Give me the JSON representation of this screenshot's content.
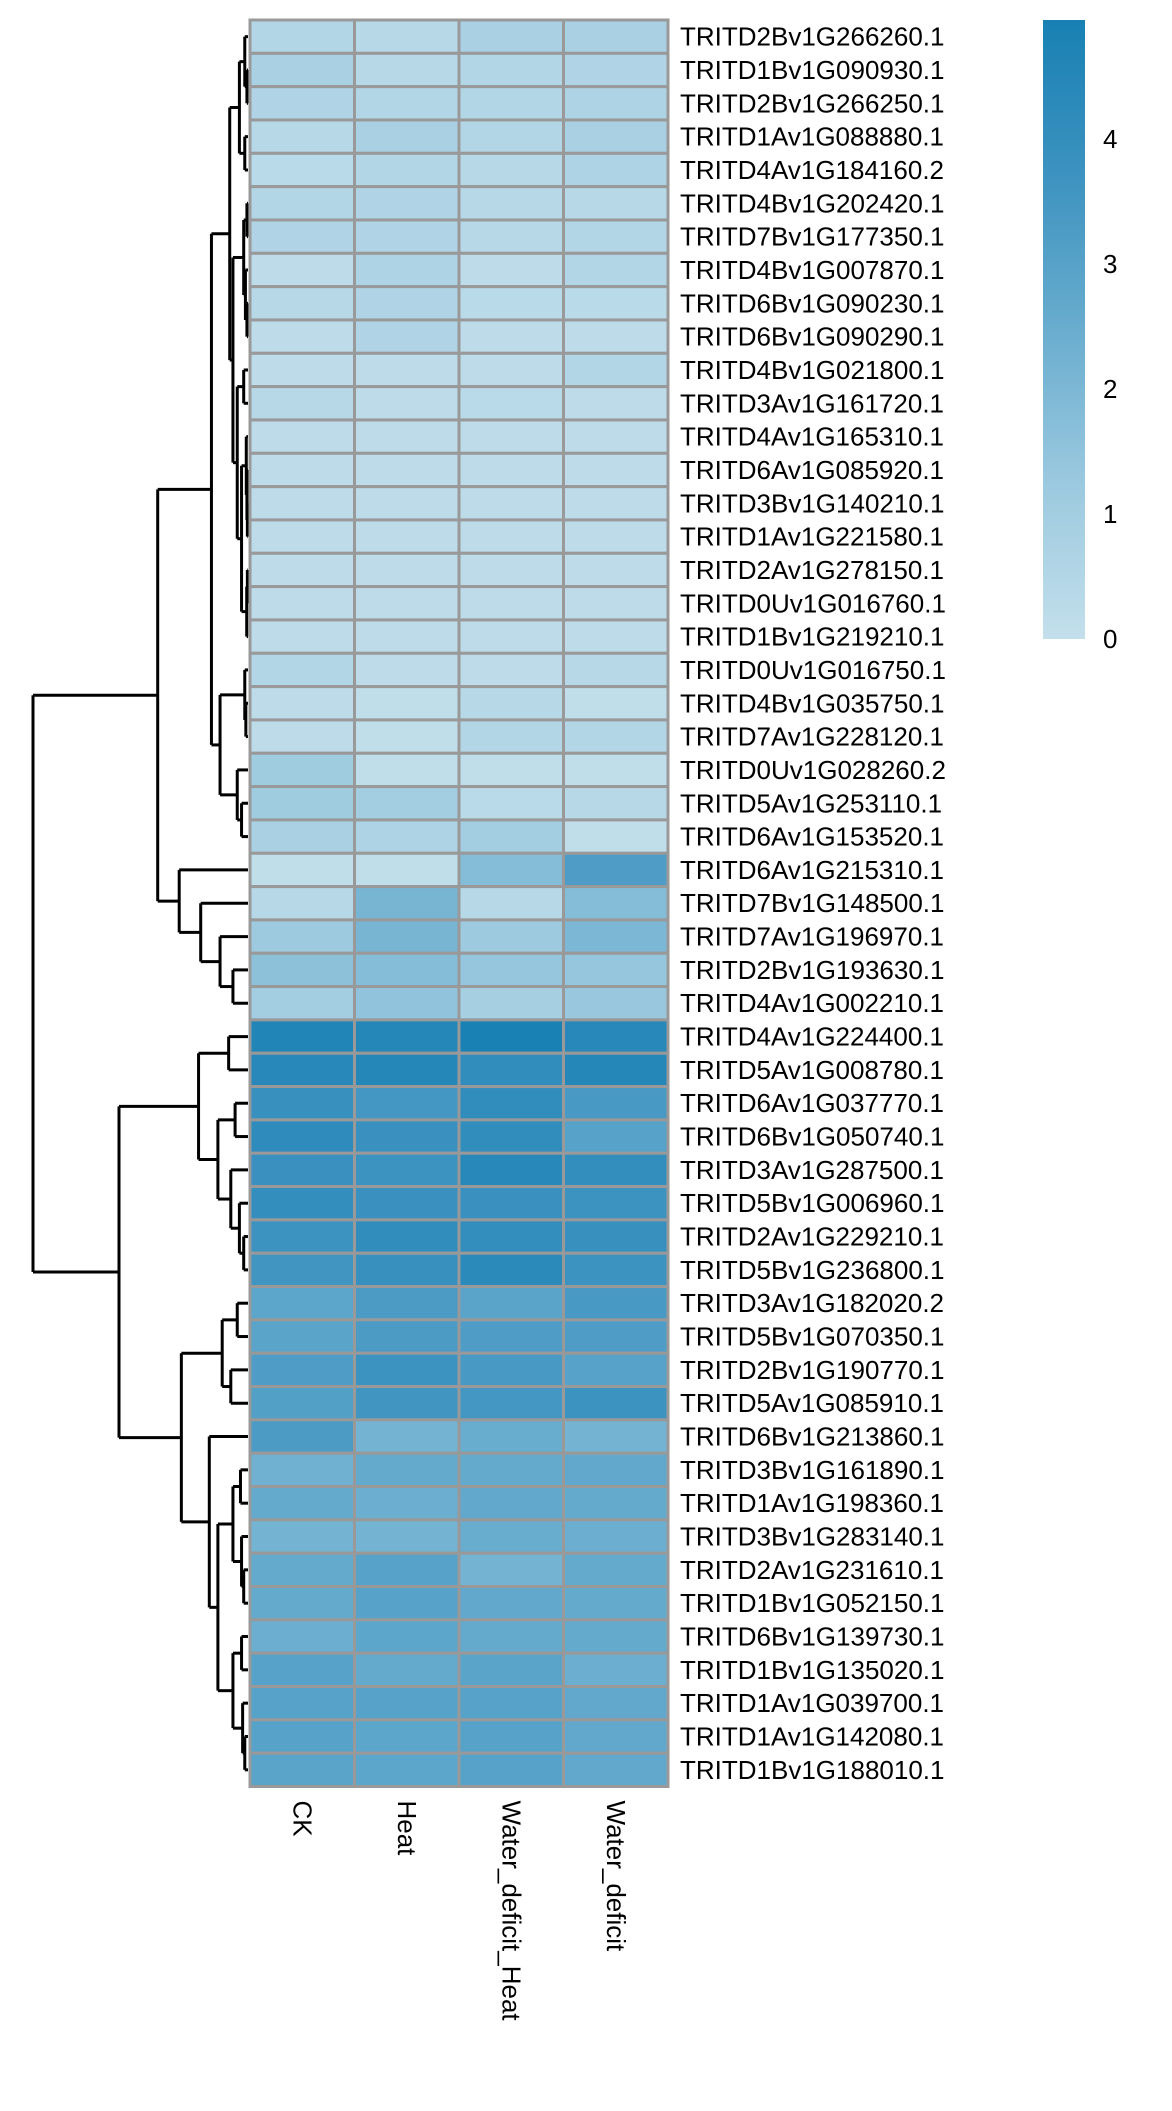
{
  "chart_data": {
    "type": "heatmap",
    "title": "",
    "columns": [
      "CK",
      "Heat",
      "Water_deficit_Heat",
      "Water_deficit"
    ],
    "rows": [
      "TRITD2Bv1G266260.1",
      "TRITD1Bv1G090930.1",
      "TRITD2Bv1G266250.1",
      "TRITD1Av1G088880.1",
      "TRITD4Av1G184160.2",
      "TRITD4Bv1G202420.1",
      "TRITD7Bv1G177350.1",
      "TRITD4Bv1G007870.1",
      "TRITD6Bv1G090230.1",
      "TRITD6Bv1G090290.1",
      "TRITD4Bv1G021800.1",
      "TRITD3Av1G161720.1",
      "TRITD4Av1G165310.1",
      "TRITD6Av1G085920.1",
      "TRITD3Bv1G140210.1",
      "TRITD1Av1G221580.1",
      "TRITD2Av1G278150.1",
      "TRITD0Uv1G016760.1",
      "TRITD1Bv1G219210.1",
      "TRITD0Uv1G016750.1",
      "TRITD4Bv1G035750.1",
      "TRITD7Av1G228120.1",
      "TRITD0Uv1G028260.2",
      "TRITD5Av1G253110.1",
      "TRITD6Av1G153520.1",
      "TRITD6Av1G215310.1",
      "TRITD7Bv1G148500.1",
      "TRITD7Av1G196970.1",
      "TRITD2Bv1G193630.1",
      "TRITD4Av1G002210.1",
      "TRITD4Av1G224400.1",
      "TRITD5Av1G008780.1",
      "TRITD6Av1G037770.1",
      "TRITD6Bv1G050740.1",
      "TRITD3Av1G287500.1",
      "TRITD5Bv1G006960.1",
      "TRITD2Av1G229210.1",
      "TRITD5Bv1G236800.1",
      "TRITD3Av1G182020.2",
      "TRITD5Bv1G070350.1",
      "TRITD2Bv1G190770.1",
      "TRITD5Av1G085910.1",
      "TRITD6Bv1G213860.1",
      "TRITD3Bv1G161890.1",
      "TRITD1Av1G198360.1",
      "TRITD3Bv1G283140.1",
      "TRITD2Av1G231610.1",
      "TRITD1Bv1G052150.1",
      "TRITD6Bv1G139730.1",
      "TRITD1Bv1G135020.1",
      "TRITD1Av1G039700.1",
      "TRITD1Av1G142080.1",
      "TRITD1Bv1G188010.1"
    ],
    "values": [
      [
        0.5,
        0.4,
        0.8,
        0.8
      ],
      [
        0.8,
        0.4,
        0.5,
        0.6
      ],
      [
        0.6,
        0.5,
        0.5,
        0.7
      ],
      [
        0.4,
        0.8,
        0.5,
        0.8
      ],
      [
        0.3,
        0.5,
        0.4,
        0.7
      ],
      [
        0.5,
        0.6,
        0.4,
        0.4
      ],
      [
        0.6,
        0.6,
        0.4,
        0.5
      ],
      [
        0.2,
        0.7,
        0.2,
        0.5
      ],
      [
        0.4,
        0.6,
        0.3,
        0.3
      ],
      [
        0.2,
        0.6,
        0.2,
        0.2
      ],
      [
        0.2,
        0.2,
        0.2,
        0.5
      ],
      [
        0.4,
        0.2,
        0.3,
        0.2
      ],
      [
        0.2,
        0.2,
        0.2,
        0.2
      ],
      [
        0.2,
        0.2,
        0.2,
        0.2
      ],
      [
        0.2,
        0.2,
        0.2,
        0.2
      ],
      [
        0.2,
        0.2,
        0.2,
        0.2
      ],
      [
        0.2,
        0.2,
        0.2,
        0.2
      ],
      [
        0.2,
        0.2,
        0.2,
        0.2
      ],
      [
        0.2,
        0.2,
        0.2,
        0.2
      ],
      [
        0.5,
        0.2,
        0.2,
        0.4
      ],
      [
        0.2,
        0.1,
        0.4,
        0.1
      ],
      [
        0.2,
        0.1,
        0.5,
        0.5
      ],
      [
        1.1,
        0.1,
        0.1,
        0.1
      ],
      [
        1.1,
        1.0,
        0.3,
        0.4
      ],
      [
        0.8,
        0.7,
        1.0,
        0.1
      ],
      [
        0.1,
        0.1,
        1.8,
        3.2
      ],
      [
        0.4,
        2.1,
        0.4,
        1.8
      ],
      [
        1.2,
        2.1,
        1.2,
        2.0
      ],
      [
        1.6,
        1.8,
        1.4,
        1.4
      ],
      [
        1.0,
        1.5,
        0.9,
        1.3
      ],
      [
        4.6,
        4.5,
        4.9,
        4.4
      ],
      [
        4.4,
        4.5,
        4.1,
        4.5
      ],
      [
        3.9,
        3.5,
        4.1,
        3.4
      ],
      [
        4.2,
        3.8,
        4.1,
        3.0
      ],
      [
        3.8,
        3.7,
        4.4,
        4.0
      ],
      [
        4.0,
        3.8,
        3.8,
        3.7
      ],
      [
        3.7,
        4.1,
        4.0,
        3.9
      ],
      [
        3.6,
        3.9,
        4.3,
        3.7
      ],
      [
        2.8,
        3.3,
        2.9,
        3.4
      ],
      [
        2.9,
        3.3,
        3.2,
        3.2
      ],
      [
        3.2,
        3.7,
        3.4,
        3.0
      ],
      [
        3.1,
        3.6,
        3.5,
        3.7
      ],
      [
        3.3,
        2.2,
        2.5,
        2.2
      ],
      [
        2.3,
        2.6,
        2.6,
        2.7
      ],
      [
        2.6,
        2.4,
        2.7,
        2.6
      ],
      [
        2.2,
        2.2,
        2.5,
        2.4
      ],
      [
        2.6,
        3.0,
        2.2,
        2.6
      ],
      [
        2.6,
        3.0,
        2.7,
        2.6
      ],
      [
        2.4,
        2.8,
        2.6,
        2.6
      ],
      [
        3.0,
        2.6,
        2.9,
        2.4
      ],
      [
        3.0,
        3.0,
        3.0,
        2.7
      ],
      [
        3.0,
        2.8,
        3.0,
        2.7
      ],
      [
        2.9,
        2.8,
        3.0,
        2.7
      ]
    ],
    "color_scale": {
      "min": 0,
      "max": 4.95,
      "stops": [
        {
          "value": 0,
          "color": "#c3dfeb"
        },
        {
          "value": 1.25,
          "color": "#9bc9df"
        },
        {
          "value": 2.5,
          "color": "#68acce"
        },
        {
          "value": 3.7,
          "color": "#3d93c0"
        },
        {
          "value": 4.95,
          "color": "#1880b3"
        }
      ],
      "ticks": [
        0,
        1,
        2,
        3,
        4
      ],
      "legend_position": "top-right"
    },
    "cell_border_color": "#999999",
    "row_dendrogram": {
      "h": 10,
      "c": [
        {
          "h": 4.2,
          "c": [
            {
              "h": 1.7,
              "c": [
                {
                  "h": 0.85,
                  "c": [
                    {
                      "h": 0.4,
                      "c": [
                        {
                          "h": 0.15,
                          "c": [
                            0,
                            {
                              "h": 0.05,
                              "c": [
                                1,
                                2
                              ]
                            }
                          ]
                        },
                        {
                          "h": 0.15,
                          "c": [
                            3,
                            4
                          ]
                        }
                      ]
                    },
                    {
                      "h": 0.7,
                      "c": [
                        {
                          "h": 0.2,
                          "c": [
                            {
                              "h": 0.05,
                              "c": [
                                5,
                                6
                              ]
                            },
                            {
                              "h": 0.12,
                              "c": [
                                7,
                                {
                                  "h": 0.05,
                                  "c": [
                                    8,
                                    9
                                  ]
                                }
                              ]
                            }
                          ]
                        },
                        {
                          "h": 0.5,
                          "c": [
                            {
                              "h": 0.2,
                              "c": [
                                10,
                                11
                              ]
                            },
                            {
                              "h": 0.3,
                              "c": [
                                {
                                  "h": 0.08,
                                  "c": [
                                    12,
                                    {
                                      "h": 0.05,
                                      "c": [
                                        13,
                                        {
                                          "h": 0.03,
                                          "c": [
                                            14,
                                            15
                                          ]
                                        }
                                      ]
                                    }
                                  ]
                                },
                                {
                                  "h": 0.06,
                                  "c": [
                                    {
                                      "h": 0.03,
                                      "c": [
                                        16,
                                        17
                                      ]
                                    },
                                    18
                                  ]
                                }
                              ]
                            }
                          ]
                        }
                      ]
                    }
                  ]
                },
                {
                  "h": 1.3,
                  "c": [
                    {
                      "h": 0.15,
                      "c": [
                        19,
                        {
                          "h": 0.1,
                          "c": [
                            20,
                            21
                          ]
                        }
                      ]
                    },
                    {
                      "h": 0.5,
                      "c": [
                        22,
                        {
                          "h": 0.3,
                          "c": [
                            23,
                            24
                          ]
                        }
                      ]
                    }
                  ]
                }
              ]
            },
            {
              "h": 3.2,
              "c": [
                25,
                {
                  "h": 2.2,
                  "c": [
                    26,
                    {
                      "h": 1.3,
                      "c": [
                        27,
                        {
                          "h": 0.7,
                          "c": [
                            28,
                            29
                          ]
                        }
                      ]
                    }
                  ]
                }
              ]
            }
          ]
        },
        {
          "h": 6.0,
          "c": [
            {
              "h": 2.3,
              "c": [
                {
                  "h": 0.9,
                  "c": [
                    30,
                    31
                  ]
                },
                {
                  "h": 1.4,
                  "c": [
                    {
                      "h": 0.6,
                      "c": [
                        32,
                        33
                      ]
                    },
                    {
                      "h": 0.8,
                      "c": [
                        34,
                        {
                          "h": 0.4,
                          "c": [
                            35,
                            {
                              "h": 0.2,
                              "c": [
                                36,
                                37
                              ]
                            }
                          ]
                        }
                      ]
                    }
                  ]
                }
              ]
            },
            {
              "h": 3.1,
              "c": [
                {
                  "h": 1.2,
                  "c": [
                    {
                      "h": 0.5,
                      "c": [
                        38,
                        39
                      ]
                    },
                    {
                      "h": 0.8,
                      "c": [
                        40,
                        41
                      ]
                    }
                  ]
                },
                {
                  "h": 1.8,
                  "c": [
                    42,
                    {
                      "h": 1.4,
                      "c": [
                        {
                          "h": 0.7,
                          "c": [
                            {
                              "h": 0.35,
                              "c": [
                                43,
                                44
                              ]
                            },
                            {
                              "h": 0.3,
                              "c": [
                                45,
                                {
                                  "h": 0.2,
                                  "c": [
                                    46,
                                    47
                                  ]
                                }
                              ]
                            }
                          ]
                        },
                        {
                          "h": 0.7,
                          "c": [
                            {
                              "h": 0.3,
                              "c": [
                                48,
                                49
                              ]
                            },
                            {
                              "h": 0.25,
                              "c": [
                                50,
                                {
                                  "h": 0.15,
                                  "c": [
                                    51,
                                    52
                                  ]
                                }
                              ]
                            }
                          ]
                        }
                      ]
                    }
                  ]
                }
              ]
            }
          ]
        }
      ]
    }
  }
}
